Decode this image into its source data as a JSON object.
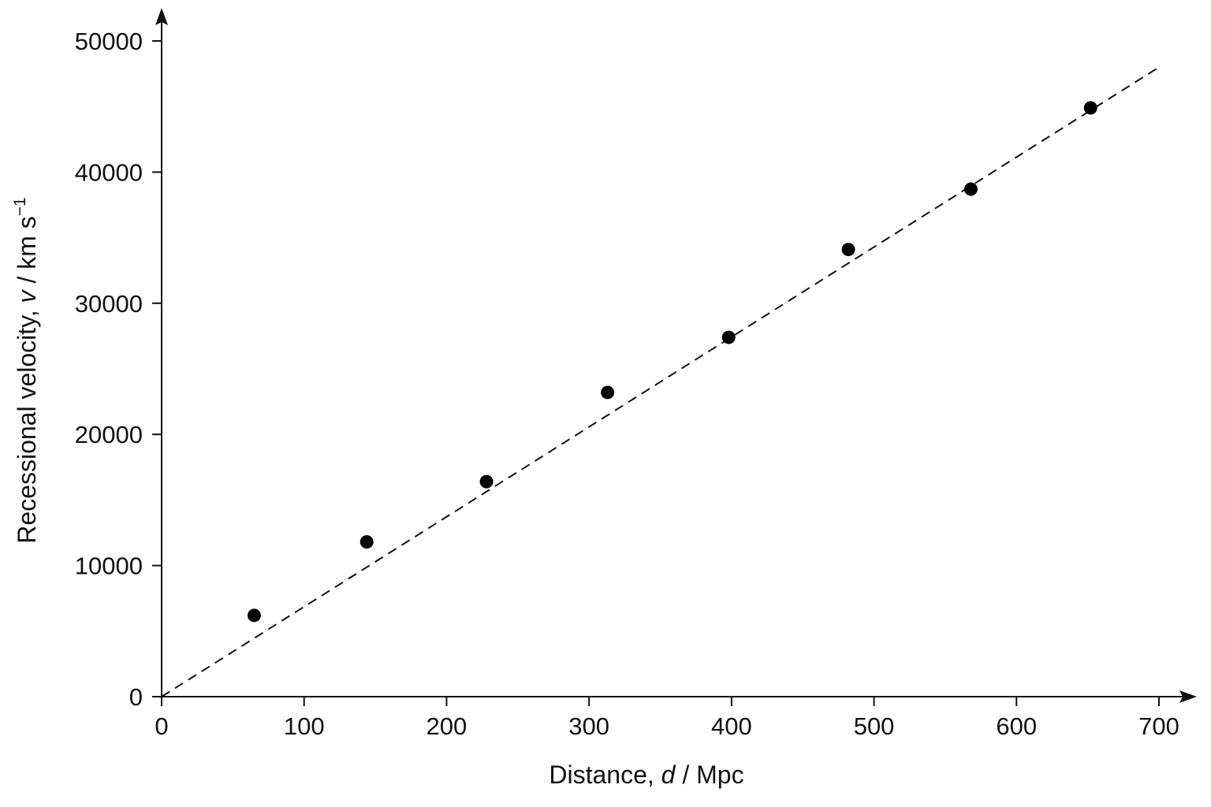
{
  "chart_data": {
    "type": "scatter",
    "xlabel": {
      "pre": "Distance, ",
      "var": "d",
      "post": " / Mpc"
    },
    "ylabel": {
      "pre": "Recessional velocity, ",
      "var": "v",
      "post": " / km s",
      "sup": "−1"
    },
    "xlim": [
      0,
      700
    ],
    "ylim": [
      0,
      50000
    ],
    "x_ticks": [
      0,
      100,
      200,
      300,
      400,
      500,
      600,
      700
    ],
    "y_ticks": [
      0,
      10000,
      20000,
      30000,
      40000,
      50000
    ],
    "grid": false,
    "legend": "none",
    "points": [
      {
        "x": 65,
        "y": 6200
      },
      {
        "x": 144,
        "y": 11800
      },
      {
        "x": 228,
        "y": 16400
      },
      {
        "x": 313,
        "y": 23200
      },
      {
        "x": 398,
        "y": 27400
      },
      {
        "x": 482,
        "y": 34100
      },
      {
        "x": 568,
        "y": 38700
      },
      {
        "x": 652,
        "y": 44900
      }
    ],
    "fit_line": {
      "x": [
        0,
        700
      ],
      "y": [
        0,
        48000
      ],
      "style": "dashed"
    }
  }
}
